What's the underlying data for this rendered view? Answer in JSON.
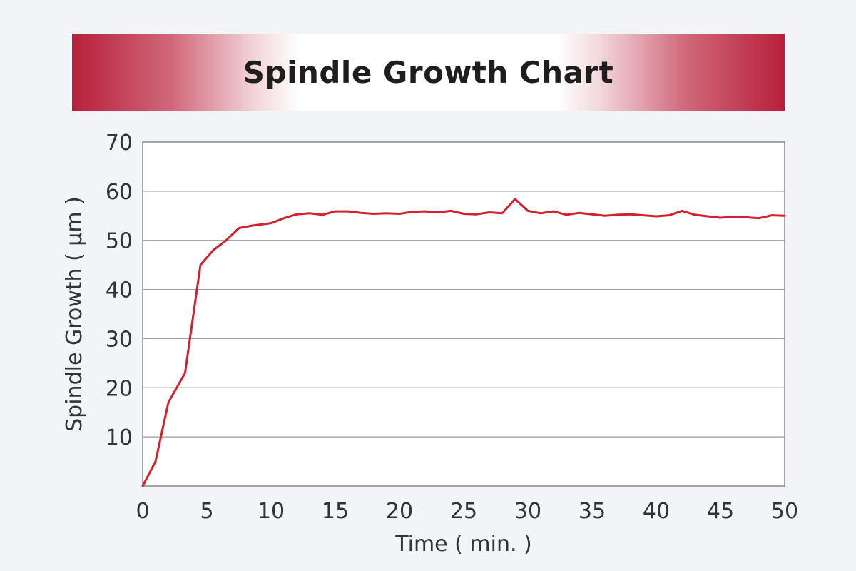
{
  "chart_data": {
    "type": "line",
    "title": "Spindle Growth Chart",
    "xlabel": "Time ( min. )",
    "ylabel": "Spindle Growth ( μm )",
    "xlim": [
      0,
      50
    ],
    "ylim": [
      0,
      70
    ],
    "x_ticks": [
      0,
      5,
      10,
      15,
      20,
      25,
      30,
      35,
      40,
      45,
      50
    ],
    "y_ticks": [
      10,
      20,
      30,
      40,
      50,
      60,
      70
    ],
    "grid": "horizontal",
    "colors": {
      "line": "#d2202e",
      "banner_accent": "#b8203a",
      "grid": "#999999"
    },
    "series": [
      {
        "values": [
          [
            0,
            0
          ],
          [
            1,
            5
          ],
          [
            2,
            17
          ],
          [
            3.3,
            23
          ],
          [
            4.5,
            45
          ],
          [
            5.5,
            48
          ],
          [
            6.5,
            50
          ],
          [
            7.5,
            52.5
          ],
          [
            8.5,
            53
          ],
          [
            10,
            53.5
          ],
          [
            11,
            54.5
          ],
          [
            12,
            55.3
          ],
          [
            13,
            55.5
          ],
          [
            14,
            55.2
          ],
          [
            15,
            55.9
          ],
          [
            16,
            55.9
          ],
          [
            17,
            55.6
          ],
          [
            18,
            55.4
          ],
          [
            19,
            55.5
          ],
          [
            20,
            55.4
          ],
          [
            21,
            55.8
          ],
          [
            22,
            55.9
          ],
          [
            23,
            55.7
          ],
          [
            24,
            56
          ],
          [
            25,
            55.4
          ],
          [
            26,
            55.3
          ],
          [
            27,
            55.7
          ],
          [
            28,
            55.5
          ],
          [
            29,
            58.4
          ],
          [
            30,
            56
          ],
          [
            31,
            55.5
          ],
          [
            32,
            55.9
          ],
          [
            33,
            55.2
          ],
          [
            34,
            55.6
          ],
          [
            35,
            55.3
          ],
          [
            36,
            55
          ],
          [
            37,
            55.2
          ],
          [
            38,
            55.3
          ],
          [
            39,
            55.1
          ],
          [
            40,
            54.9
          ],
          [
            41,
            55.1
          ],
          [
            42,
            56
          ],
          [
            43,
            55.2
          ],
          [
            44,
            54.9
          ],
          [
            45,
            54.6
          ],
          [
            46,
            54.8
          ],
          [
            47,
            54.7
          ],
          [
            48,
            54.5
          ],
          [
            49,
            55.1
          ],
          [
            50,
            55
          ]
        ]
      }
    ]
  }
}
